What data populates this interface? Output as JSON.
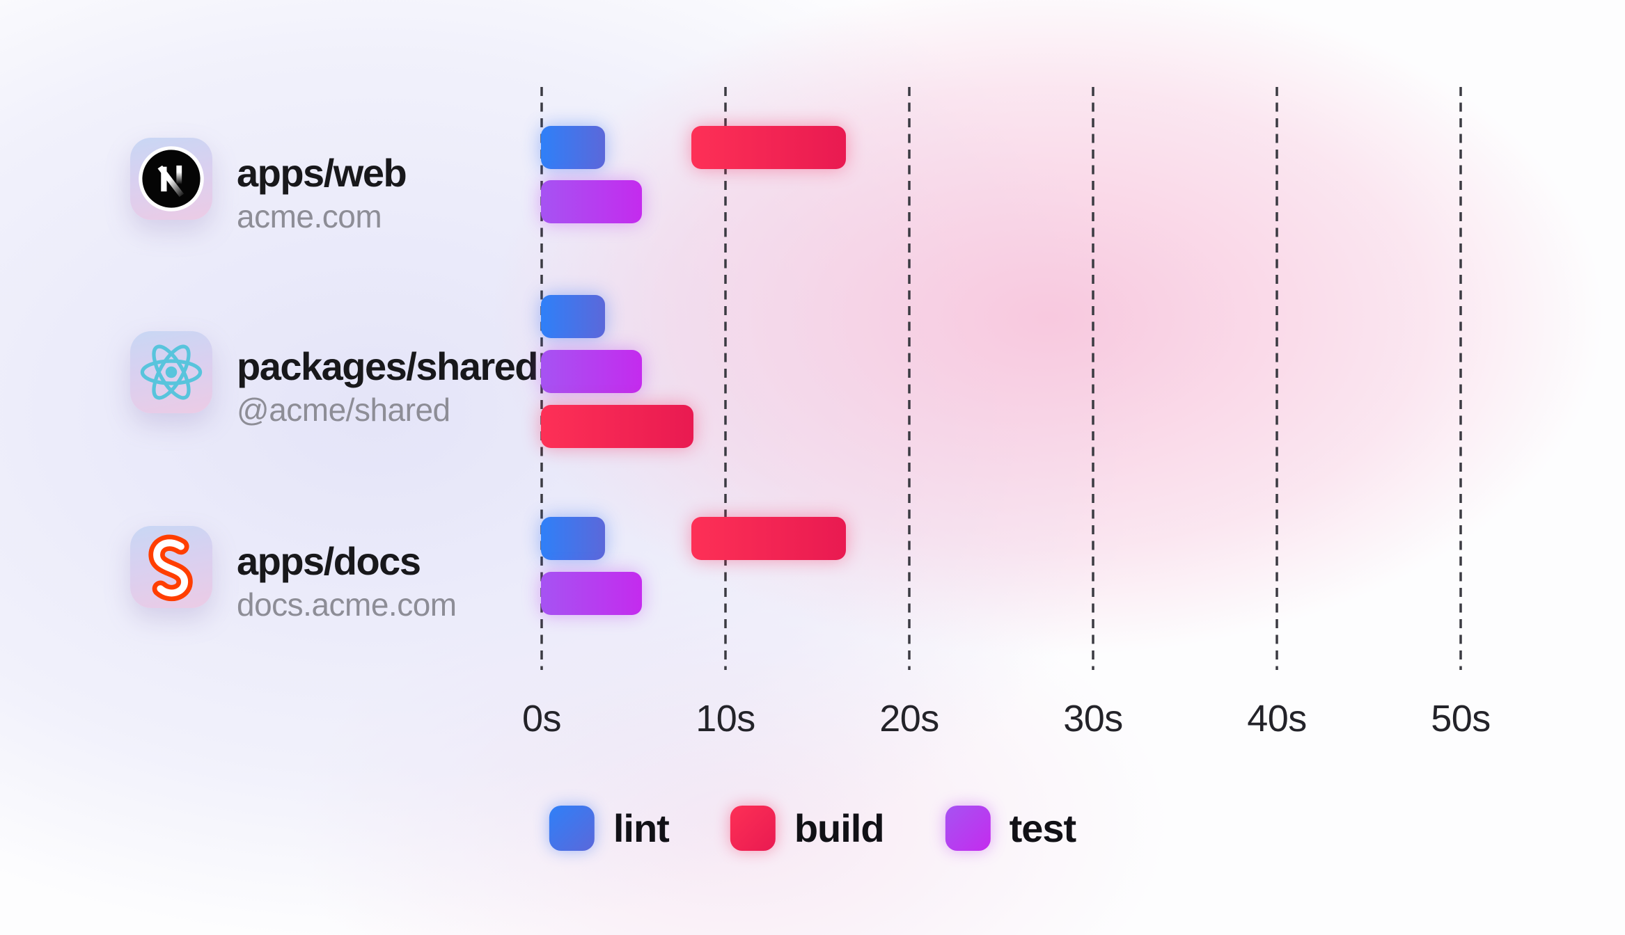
{
  "chart_data": {
    "type": "gantt-timeline",
    "unit": "seconds",
    "x_axis": {
      "ticks": [
        {
          "value": 0,
          "label": "0s"
        },
        {
          "value": 10,
          "label": "10s"
        },
        {
          "value": 20,
          "label": "20s"
        },
        {
          "value": 30,
          "label": "30s"
        },
        {
          "value": 40,
          "label": "40s"
        },
        {
          "value": 50,
          "label": "50s"
        }
      ],
      "max": 50,
      "gridlines": "dashed-vertical"
    },
    "packages": [
      {
        "name": "apps/web",
        "subtitle": "acme.com",
        "icon": "nextjs-logo",
        "tasks": [
          {
            "task": "lint",
            "start": 0,
            "end": 3.5,
            "lane": 0
          },
          {
            "task": "build",
            "start": 8.2,
            "end": 16.6,
            "lane": 0
          },
          {
            "task": "test",
            "start": 0,
            "end": 5.5,
            "lane": 1
          }
        ]
      },
      {
        "name": "packages/shared",
        "subtitle": "@acme/shared",
        "icon": "react-logo",
        "tasks": [
          {
            "task": "lint",
            "start": 0,
            "end": 3.5,
            "lane": 0
          },
          {
            "task": "test",
            "start": 0,
            "end": 5.5,
            "lane": 1
          },
          {
            "task": "build",
            "start": 0,
            "end": 8.3,
            "lane": 2
          }
        ]
      },
      {
        "name": "apps/docs",
        "subtitle": "docs.acme.com",
        "icon": "svelte-logo",
        "tasks": [
          {
            "task": "lint",
            "start": 0,
            "end": 3.5,
            "lane": 0
          },
          {
            "task": "build",
            "start": 8.2,
            "end": 16.6,
            "lane": 0
          },
          {
            "task": "test",
            "start": 0,
            "end": 5.5,
            "lane": 1
          }
        ]
      }
    ],
    "legend": [
      {
        "task": "lint",
        "label": "lint",
        "color_start": "#2f80f8",
        "color_end": "#5b68da"
      },
      {
        "task": "build",
        "label": "build",
        "color_start": "#fd3056",
        "color_end": "#e91a51"
      },
      {
        "task": "test",
        "label": "test",
        "color_start": "#a653f2",
        "color_end": "#c42bee"
      }
    ],
    "colors": {
      "gridline": "#3b3b42",
      "axis_text": "#232329",
      "package_name": "#18181b",
      "package_subtitle": "#8d8d96",
      "nextjs_icon": "#000000",
      "react_icon": "#58c4dc",
      "svelte_icon": "#ff3e00"
    }
  }
}
